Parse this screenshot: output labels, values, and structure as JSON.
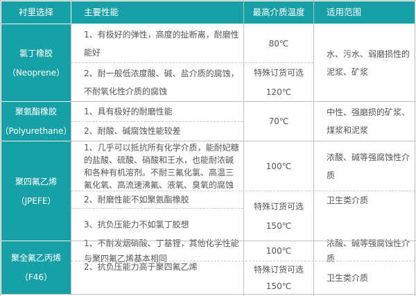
{
  "header": {
    "col1": "衬里选择",
    "col2": "主要性能",
    "col3": "最高介质温度",
    "col4": "适用范围"
  },
  "colors": {
    "header_bg": "#17a0a6",
    "header_text": "#ffffff",
    "grid": "#bfbfbf"
  },
  "rows": [
    {
      "material": [
        "氯丁橡胶",
        "（Neoprene）"
      ],
      "properties": [
        [
          "1、有极好的弹性，高度的扯断离，耐磨性",
          "能好"
        ],
        [
          "2、耐一般低浓度酸、碱、盐介质的腐蚀，",
          "不耐氧化性介质的腐蚀"
        ]
      ],
      "temperature": [
        [
          "80℃"
        ],
        [
          "特殊订货可选",
          "120℃"
        ]
      ],
      "scope": [
        [
          "水、污水、弱磨损性的",
          "泥浆、矿浆"
        ]
      ]
    },
    {
      "material": [
        "聚氨酯橡胶",
        "（Polyurethane）"
      ],
      "properties": [
        [
          "1、具有极好的耐磨性能"
        ],
        [
          "2、耐酸、碱腐蚀性能较差"
        ]
      ],
      "temperature": [
        [
          "70℃"
        ]
      ],
      "scope": [
        [
          "中性、强磨损的矿浆、",
          "煤浆和泥浆"
        ]
      ]
    },
    {
      "material": [
        "聚四氟乙烯",
        "（JPEFE）"
      ],
      "properties": [
        [
          "1、几乎可以抵抗所有化学介质，能耐妃糖",
          "的盐酸、硫酸、硝酸和王水，也能耐浓碱",
          "和各种有机溶剂。不耐三氟化氯、高温三",
          "氟化氧、高流速沸氟、液氧、臭氧的腐蚀"
        ],
        [
          "2、耐磨性能不如聚氨酯橡胶"
        ],
        [
          "3、抗负压能力不如氯丁胶想"
        ]
      ],
      "temperature": [
        [
          "100℃"
        ],
        [
          "特殊订货可选",
          "150℃"
        ]
      ],
      "scope": [
        [
          "浓酸、碱等强腐蚀性介",
          "质"
        ],
        [
          "卫生类介质"
        ]
      ]
    },
    {
      "material": [
        "聚全氟乙丙烯",
        "（F46）"
      ],
      "properties": [
        [
          "1、不耐发烟硝酸、丁基锂，其他化学性能",
          "与聚四氟乙烯基本相同"
        ],
        [
          "2、抗负压能力高于聚四氟乙烯"
        ]
      ],
      "temperature": [
        [
          "100℃"
        ],
        [
          "特殊订货可选",
          "150℃"
        ]
      ],
      "scope": [
        [
          "浓酸、碱等强腐蚀性介",
          "质"
        ],
        [
          "卫生类介质"
        ]
      ]
    }
  ]
}
